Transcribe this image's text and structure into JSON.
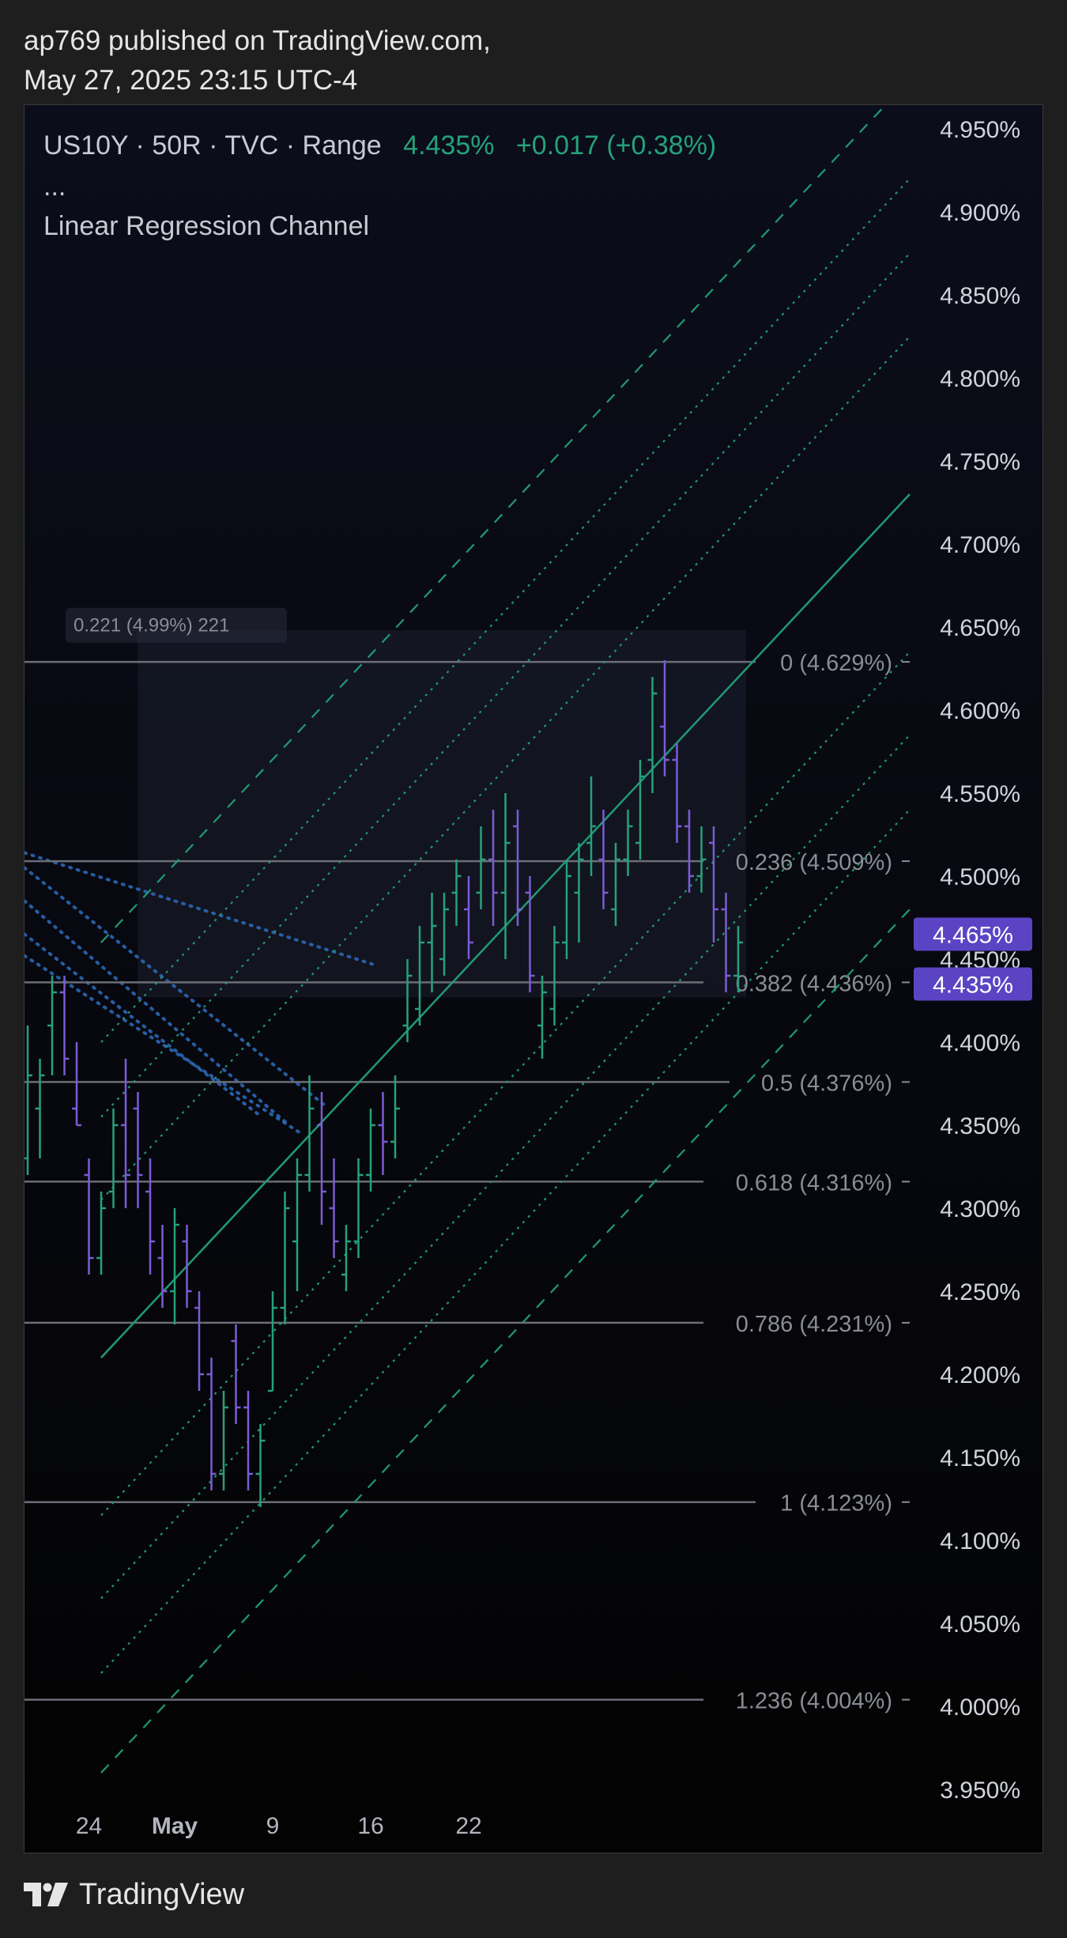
{
  "header": {
    "publisher_line": "ap769 published on TradingView.com,",
    "date_line": "May 27, 2025 23:15 UTC-4"
  },
  "legend": {
    "symbol_line": "US10Y · 50R · TVC · Range",
    "price": "4.435%",
    "change": "+0.017 (+0.38%)",
    "more": "...",
    "indicator": "Linear Regression Channel"
  },
  "footer": {
    "brand": "TradingView",
    "logo_icon": "tradingview-logo-icon"
  },
  "colors": {
    "up": "#26a17a",
    "down": "#7b5bd6",
    "regression": "#1f9a73",
    "fib_line": "#6b6e76",
    "fib_text": "#8a8d95",
    "price_tag": "#5b44c4",
    "dotted_blue": "#2c6cbe"
  },
  "chart_data": {
    "type": "ohlc",
    "y_axis": {
      "min": 3.95,
      "max": 4.95,
      "unit": "%",
      "ticks": [
        "4.950%",
        "4.900%",
        "4.850%",
        "4.800%",
        "4.750%",
        "4.700%",
        "4.650%",
        "4.600%",
        "4.550%",
        "4.500%",
        "4.450%",
        "4.400%",
        "4.350%",
        "4.300%",
        "4.250%",
        "4.200%",
        "4.150%",
        "4.100%",
        "4.050%",
        "4.000%",
        "3.950%"
      ]
    },
    "x_axis": {
      "ticks": [
        {
          "label": "24",
          "bar": 5,
          "bold": false
        },
        {
          "label": "May",
          "bar": 12,
          "bold": true
        },
        {
          "label": "9",
          "bar": 20,
          "bold": false
        },
        {
          "label": "16",
          "bar": 28,
          "bold": false
        },
        {
          "label": "22",
          "bar": 36,
          "bold": false
        }
      ]
    },
    "price_tags": [
      "4.465%",
      "4.435%"
    ],
    "price_tag_values": [
      4.465,
      4.435
    ],
    "measure_label": "0.221 (4.99%) 221",
    "measure_box": {
      "from_bar": 9,
      "to_bar": 58,
      "top": 4.648,
      "bottom": 4.427
    },
    "fib_levels": [
      {
        "label": "0 (4.629%)",
        "value": 4.629
      },
      {
        "label": "0.236 (4.509%)",
        "value": 4.509
      },
      {
        "label": "0.382 (4.436%)",
        "value": 4.436
      },
      {
        "label": "0.5 (4.376%)",
        "value": 4.376
      },
      {
        "label": "0.618 (4.316%)",
        "value": 4.316
      },
      {
        "label": "0.786 (4.231%)",
        "value": 4.231
      },
      {
        "label": "1 (4.123%)",
        "value": 4.123
      },
      {
        "label": "1.236 (4.004%)",
        "value": 4.004
      }
    ],
    "regression_channel": {
      "from_bar": 6,
      "to_bar": 58,
      "base": [
        4.21,
        4.73
      ],
      "offsets": [
        0.25,
        0.19,
        0.145,
        0.095,
        -0.095,
        -0.145,
        -0.19,
        -0.25
      ]
    },
    "bars": [
      {
        "o": 4.33,
        "h": 4.41,
        "l": 4.32,
        "c": 4.38
      },
      {
        "o": 4.36,
        "h": 4.39,
        "l": 4.33,
        "c": 4.38
      },
      {
        "o": 4.41,
        "h": 4.44,
        "l": 4.38,
        "c": 4.43
      },
      {
        "o": 4.43,
        "h": 4.44,
        "l": 4.38,
        "c": 4.39
      },
      {
        "o": 4.36,
        "h": 4.4,
        "l": 4.35,
        "c": 4.35
      },
      {
        "o": 4.32,
        "h": 4.33,
        "l": 4.26,
        "c": 4.27
      },
      {
        "o": 4.27,
        "h": 4.31,
        "l": 4.26,
        "c": 4.3
      },
      {
        "o": 4.31,
        "h": 4.36,
        "l": 4.3,
        "c": 4.35
      },
      {
        "o": 4.35,
        "h": 4.39,
        "l": 4.3,
        "c": 4.32
      },
      {
        "o": 4.36,
        "h": 4.37,
        "l": 4.3,
        "c": 4.32
      },
      {
        "o": 4.31,
        "h": 4.33,
        "l": 4.26,
        "c": 4.28
      },
      {
        "o": 4.27,
        "h": 4.29,
        "l": 4.24,
        "c": 4.25
      },
      {
        "o": 4.25,
        "h": 4.3,
        "l": 4.23,
        "c": 4.29
      },
      {
        "o": 4.28,
        "h": 4.29,
        "l": 4.24,
        "c": 4.25
      },
      {
        "o": 4.24,
        "h": 4.25,
        "l": 4.19,
        "c": 4.2
      },
      {
        "o": 4.2,
        "h": 4.21,
        "l": 4.13,
        "c": 4.14
      },
      {
        "o": 4.14,
        "h": 4.19,
        "l": 4.13,
        "c": 4.18
      },
      {
        "o": 4.22,
        "h": 4.23,
        "l": 4.17,
        "c": 4.18
      },
      {
        "o": 4.18,
        "h": 4.19,
        "l": 4.13,
        "c": 4.14
      },
      {
        "o": 4.14,
        "h": 4.17,
        "l": 4.12,
        "c": 4.16
      },
      {
        "o": 4.19,
        "h": 4.25,
        "l": 4.19,
        "c": 4.24
      },
      {
        "o": 4.24,
        "h": 4.31,
        "l": 4.23,
        "c": 4.3
      },
      {
        "o": 4.28,
        "h": 4.33,
        "l": 4.25,
        "c": 4.32
      },
      {
        "o": 4.32,
        "h": 4.38,
        "l": 4.31,
        "c": 4.36
      },
      {
        "o": 4.35,
        "h": 4.37,
        "l": 4.29,
        "c": 4.31
      },
      {
        "o": 4.3,
        "h": 4.33,
        "l": 4.27,
        "c": 4.28
      },
      {
        "o": 4.26,
        "h": 4.29,
        "l": 4.25,
        "c": 4.28
      },
      {
        "o": 4.28,
        "h": 4.33,
        "l": 4.27,
        "c": 4.32
      },
      {
        "o": 4.32,
        "h": 4.36,
        "l": 4.31,
        "c": 4.35
      },
      {
        "o": 4.35,
        "h": 4.37,
        "l": 4.32,
        "c": 4.34
      },
      {
        "o": 4.34,
        "h": 4.38,
        "l": 4.33,
        "c": 4.36
      },
      {
        "o": 4.41,
        "h": 4.45,
        "l": 4.4,
        "c": 4.44
      },
      {
        "o": 4.42,
        "h": 4.47,
        "l": 4.41,
        "c": 4.46
      },
      {
        "o": 4.46,
        "h": 4.49,
        "l": 4.43,
        "c": 4.47
      },
      {
        "o": 4.45,
        "h": 4.49,
        "l": 4.44,
        "c": 4.48
      },
      {
        "o": 4.49,
        "h": 4.51,
        "l": 4.47,
        "c": 4.5
      },
      {
        "o": 4.48,
        "h": 4.5,
        "l": 4.45,
        "c": 4.46
      },
      {
        "o": 4.49,
        "h": 4.53,
        "l": 4.48,
        "c": 4.51
      },
      {
        "o": 4.51,
        "h": 4.54,
        "l": 4.47,
        "c": 4.49
      },
      {
        "o": 4.49,
        "h": 4.55,
        "l": 4.45,
        "c": 4.52
      },
      {
        "o": 4.53,
        "h": 4.54,
        "l": 4.47,
        "c": 4.48
      },
      {
        "o": 4.49,
        "h": 4.5,
        "l": 4.43,
        "c": 4.44
      },
      {
        "o": 4.41,
        "h": 4.44,
        "l": 4.39,
        "c": 4.43
      },
      {
        "o": 4.42,
        "h": 4.47,
        "l": 4.41,
        "c": 4.46
      },
      {
        "o": 4.46,
        "h": 4.51,
        "l": 4.45,
        "c": 4.5
      },
      {
        "o": 4.49,
        "h": 4.52,
        "l": 4.46,
        "c": 4.51
      },
      {
        "o": 4.52,
        "h": 4.56,
        "l": 4.5,
        "c": 4.53
      },
      {
        "o": 4.51,
        "h": 4.54,
        "l": 4.48,
        "c": 4.49
      },
      {
        "o": 4.48,
        "h": 4.52,
        "l": 4.47,
        "c": 4.51
      },
      {
        "o": 4.51,
        "h": 4.54,
        "l": 4.5,
        "c": 4.53
      },
      {
        "o": 4.52,
        "h": 4.57,
        "l": 4.51,
        "c": 4.56
      },
      {
        "o": 4.57,
        "h": 4.62,
        "l": 4.55,
        "c": 4.61
      },
      {
        "o": 4.59,
        "h": 4.63,
        "l": 4.56,
        "c": 4.57
      },
      {
        "o": 4.57,
        "h": 4.58,
        "l": 4.52,
        "c": 4.53
      },
      {
        "o": 4.53,
        "h": 4.54,
        "l": 4.49,
        "c": 4.5
      },
      {
        "o": 4.5,
        "h": 4.53,
        "l": 4.49,
        "c": 4.51
      },
      {
        "o": 4.52,
        "h": 4.53,
        "l": 4.46,
        "c": 4.48
      },
      {
        "o": 4.48,
        "h": 4.49,
        "l": 4.43,
        "c": 4.44
      },
      {
        "o": 4.44,
        "h": 4.47,
        "l": 4.43,
        "c": 4.46
      }
    ]
  }
}
